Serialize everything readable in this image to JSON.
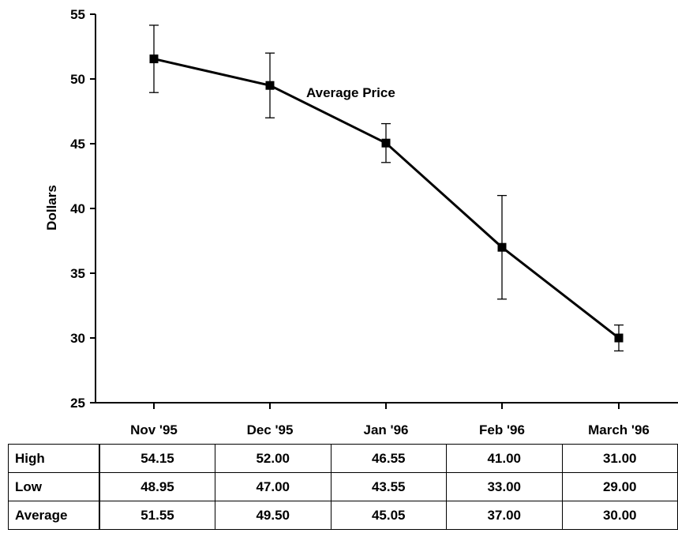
{
  "chart_data": {
    "type": "line",
    "categories": [
      "Nov '95",
      "Dec '95",
      "Jan '96",
      "Feb '96",
      "March '96"
    ],
    "series": [
      {
        "name": "Average Price",
        "values": [
          51.55,
          49.5,
          45.05,
          37.0,
          30.0
        ],
        "error_high": [
          54.15,
          52.0,
          46.55,
          41.0,
          31.0
        ],
        "error_low": [
          48.95,
          47.0,
          43.55,
          33.0,
          29.0
        ]
      }
    ],
    "ylabel": "Dollars",
    "xlabel": "",
    "ylim": [
      25,
      55
    ],
    "yticks": [
      25,
      30,
      35,
      40,
      45,
      50,
      55
    ],
    "grid": false,
    "marker": "square",
    "line_color": "#000000",
    "table": {
      "rows": [
        {
          "label": "High",
          "values": [
            "54.15",
            "52.00",
            "46.55",
            "41.00",
            "31.00"
          ]
        },
        {
          "label": "Low",
          "values": [
            "48.95",
            "47.00",
            "43.55",
            "33.00",
            "29.00"
          ]
        },
        {
          "label": "Average",
          "values": [
            "51.55",
            "49.50",
            "45.05",
            "37.00",
            "30.00"
          ]
        }
      ]
    }
  }
}
